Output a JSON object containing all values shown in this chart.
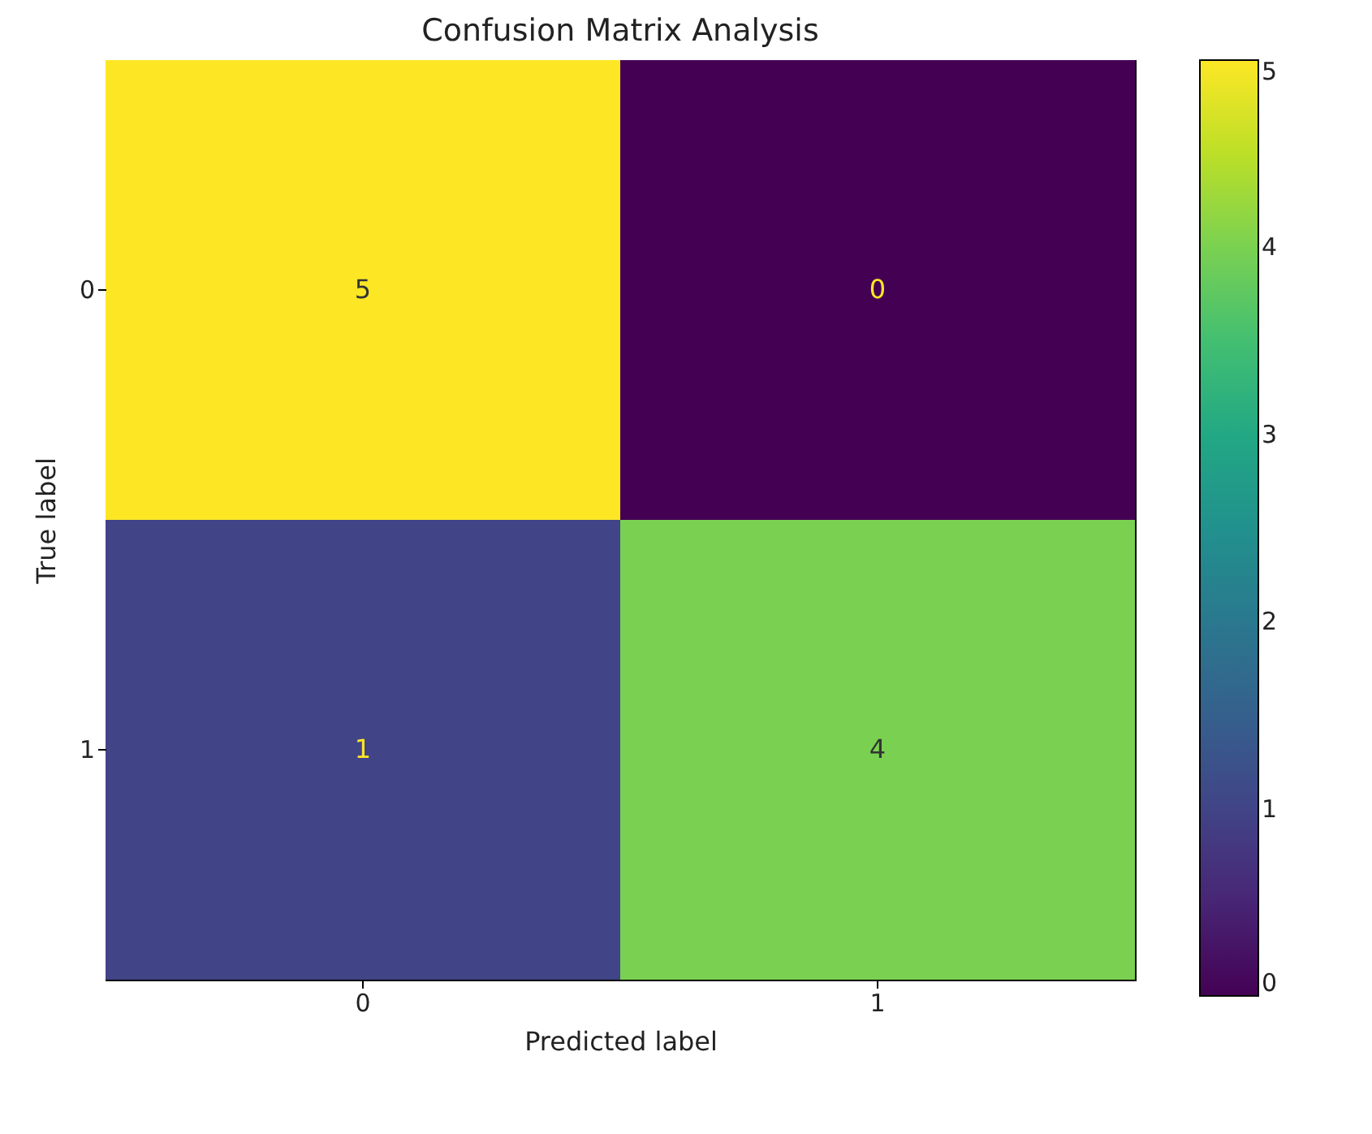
{
  "chart_data": {
    "type": "heatmap",
    "title": "Confusion Matrix Analysis",
    "xlabel": "Predicted label",
    "ylabel": "True label",
    "categories": [
      "0",
      "1"
    ],
    "y_categories": [
      "0",
      "1"
    ],
    "cells": [
      [
        5,
        0
      ],
      [
        1,
        4
      ]
    ],
    "clim": [
      0,
      5
    ],
    "cticks": [
      0,
      1,
      2,
      3,
      4,
      5
    ],
    "data_labels": true
  }
}
